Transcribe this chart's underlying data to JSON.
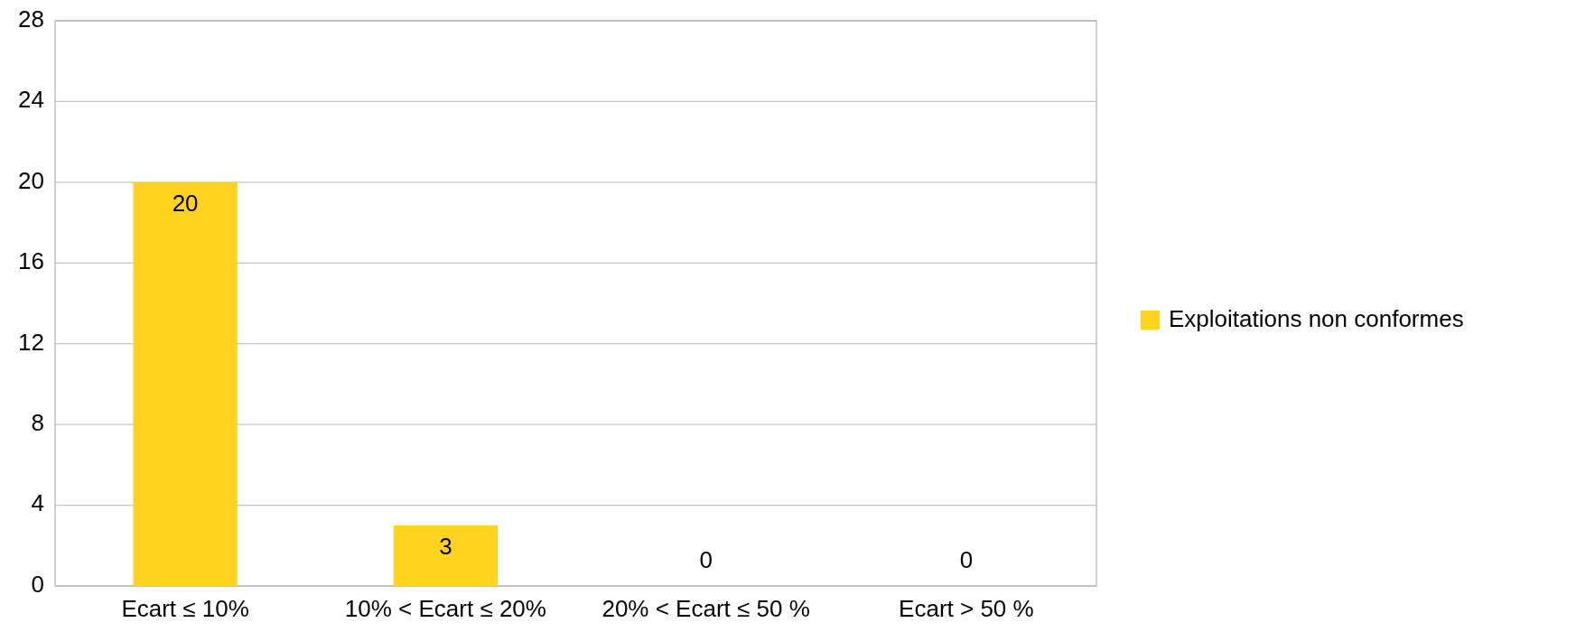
{
  "chart_data": {
    "type": "bar",
    "categories": [
      "Ecart ≤ 10%",
      "10% < Ecart ≤ 20%",
      "20% < Ecart ≤ 50 %",
      "Ecart > 50 %"
    ],
    "series": [
      {
        "name": "Exploitations non conformes",
        "color": "#ffd320",
        "values": [
          20,
          3,
          0,
          0
        ]
      }
    ],
    "ylim": [
      0,
      28
    ],
    "yticks": [
      0,
      4,
      8,
      12,
      16,
      20,
      24,
      28
    ],
    "grid": "y",
    "legend": "right",
    "data_labels": true
  }
}
